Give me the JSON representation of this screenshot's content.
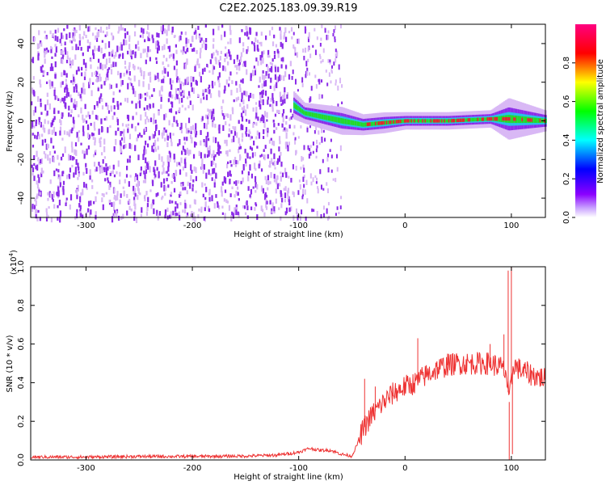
{
  "figure": {
    "title": "C2E2.2025.183.09.39.R19"
  },
  "colors": {
    "snr_line": "#ee3333",
    "spectrogram_noise": "#8b2be8",
    "spectrogram_noise_light": "#d9b8f5",
    "ridge_core": "#e8232b",
    "ridge_mid": "#22dd22",
    "ridge_outer": "#20c8e8"
  },
  "chart_data": [
    {
      "type": "heatmap",
      "name": "spectrogram",
      "xlabel": "Height of straight line (km)",
      "ylabel": "Frequency (Hz)",
      "xlim": [
        -352,
        132
      ],
      "ylim": [
        -50,
        50
      ],
      "xticks": [
        -300,
        -200,
        -100,
        0,
        100
      ],
      "xtick_labels": [
        "-300",
        "-200",
        "-100",
        "0",
        "100"
      ],
      "yticks": [
        -40,
        -20,
        0,
        20,
        40
      ],
      "ytick_labels": [
        "-40",
        "-20",
        "0",
        "20",
        "40"
      ],
      "regions": [
        {
          "x_range": [
            -352,
            -107
          ],
          "description": "broadband noise",
          "level": 0.12
        },
        {
          "x_range": [
            -107,
            -60
          ],
          "description": "sparse noise",
          "level": 0.08
        },
        {
          "x_range": [
            -60,
            132
          ],
          "description": "narrow ridge near 0 Hz",
          "level": 0.9
        }
      ],
      "ridge": [
        {
          "x": -105,
          "freq": 8,
          "width": 4,
          "amp": 0.35
        },
        {
          "x": -95,
          "freq": 4,
          "width": 3,
          "amp": 0.3
        },
        {
          "x": -60,
          "freq": 0,
          "width": 4,
          "amp": 0.35
        },
        {
          "x": -40,
          "freq": -2,
          "width": 3,
          "amp": 0.55
        },
        {
          "x": -20,
          "freq": -1,
          "width": 3,
          "amp": 0.6
        },
        {
          "x": 0,
          "freq": 0,
          "width": 2.5,
          "amp": 0.75
        },
        {
          "x": 40,
          "freq": 0,
          "width": 2.5,
          "amp": 0.85
        },
        {
          "x": 80,
          "freq": 1,
          "width": 2.5,
          "amp": 0.9
        },
        {
          "x": 97,
          "freq": 1,
          "width": 6,
          "amp": 0.7
        },
        {
          "x": 132,
          "freq": 0,
          "width": 3,
          "amp": 0.8
        }
      ]
    },
    {
      "type": "colorbar",
      "name": "colorbar",
      "label": "Normalized spectral amplitude",
      "range": [
        0,
        1
      ],
      "ticks": [
        0.0,
        0.2,
        0.4,
        0.6,
        0.8
      ],
      "tick_labels": [
        "0.0",
        "0.2",
        "0.4",
        "0.6",
        "0.8"
      ],
      "colormap": [
        "#ffffff",
        "#8b00ff",
        "#0000ff",
        "#00ffff",
        "#00ff00",
        "#ffff00",
        "#ff0000",
        "#ff0080"
      ]
    },
    {
      "type": "line",
      "name": "snr",
      "xlabel": "Height of straight line (km)",
      "ylabel": "SNR (10 * v/v)",
      "scale_label": "(x10",
      "scale_exp": "4",
      "scale_close": ")",
      "xlim": [
        -352,
        132
      ],
      "ylim": [
        0,
        1.0
      ],
      "xticks": [
        -300,
        -200,
        -100,
        0,
        100
      ],
      "xtick_labels": [
        "-300",
        "-200",
        "-100",
        "0",
        "100"
      ],
      "yticks": [
        0.0,
        0.2,
        0.4,
        0.6,
        0.8,
        1.0
      ],
      "ytick_labels": [
        "0.0",
        "0.2",
        "0.4",
        "0.6",
        "0.8",
        "1.0"
      ],
      "series": [
        {
          "x": [
            -352,
            -300,
            -250,
            -200,
            -150,
            -120,
            -100,
            -90,
            -80,
            -70,
            -60,
            -50,
            -45,
            -40,
            -35,
            -30,
            -20,
            -10,
            0,
            10,
            20,
            30,
            40,
            50,
            60,
            70,
            80,
            90,
            95,
            98,
            100,
            102,
            105,
            110,
            120,
            132
          ],
          "y": [
            0.015,
            0.015,
            0.018,
            0.018,
            0.02,
            0.025,
            0.04,
            0.06,
            0.05,
            0.05,
            0.03,
            0.02,
            0.08,
            0.15,
            0.2,
            0.24,
            0.3,
            0.35,
            0.38,
            0.4,
            0.44,
            0.47,
            0.49,
            0.5,
            0.5,
            0.5,
            0.5,
            0.48,
            0.45,
            0.3,
            0.4,
            0.5,
            0.48,
            0.46,
            0.44,
            0.42
          ]
        }
      ],
      "spikes": [
        {
          "x": -38,
          "y": 0.42
        },
        {
          "x": -28,
          "y": 0.38
        },
        {
          "x": 12,
          "y": 0.63
        },
        {
          "x": 40,
          "y": 0.55
        },
        {
          "x": 80,
          "y": 0.6
        },
        {
          "x": 93,
          "y": 0.65
        },
        {
          "x": 97,
          "y": 0.98
        },
        {
          "x": 100,
          "y": 1.0
        },
        {
          "x": 98,
          "y": 0.0
        },
        {
          "x": 101,
          "y": 0.03
        }
      ]
    }
  ]
}
